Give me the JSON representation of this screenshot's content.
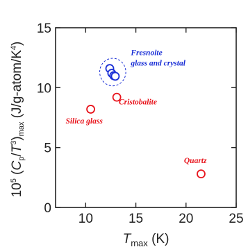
{
  "chart_data": {
    "type": "scatter",
    "x_axis": {
      "label_main": "T",
      "label_sub": "max",
      "label_unit": "(K)",
      "range": [
        7,
        25
      ],
      "ticks": [
        10,
        15,
        20,
        25
      ],
      "tick_labels": [
        "10",
        "15",
        "20",
        "25"
      ]
    },
    "y_axis": {
      "label_prefix": "10",
      "label_exp": "5",
      "label_open": "(",
      "label_c": "C",
      "label_c_sub": "p",
      "label_slash": "/",
      "label_t": "T",
      "label_t_exp": "3",
      "label_close": ")",
      "label_max_sub": "max",
      "label_unit": "(J/g-atom/K",
      "label_unit_exp": "4",
      "label_unit_close": ")",
      "range": [
        0,
        15
      ],
      "ticks": [
        0,
        5,
        10,
        15
      ],
      "tick_labels": [
        "0",
        "5",
        "10",
        "15"
      ]
    },
    "series": [
      {
        "color": "#e8141c",
        "points": [
          {
            "x": 10.5,
            "y": 8.2
          },
          {
            "x": 13.1,
            "y": 9.2
          },
          {
            "x": 21.5,
            "y": 2.8
          }
        ]
      },
      {
        "color": "#1a2fd6",
        "points": [
          {
            "x": 12.4,
            "y": 11.6
          },
          {
            "x": 12.6,
            "y": 11.2
          },
          {
            "x": 12.8,
            "y": 11.0
          },
          {
            "x": 12.95,
            "y": 10.95
          }
        ]
      }
    ],
    "group_ellipse": {
      "cx": 12.7,
      "cy": 11.3,
      "rx": 1.3,
      "ry": 1.15,
      "color": "#1a2fd6"
    },
    "annotations": [
      {
        "id": "silica",
        "lines": [
          "Silica glass"
        ],
        "color": "#e8141c",
        "x": 8.0,
        "y": 7.0
      },
      {
        "id": "cristobalite",
        "lines": [
          "Cristobalite"
        ],
        "color": "#e8141c",
        "x": 13.3,
        "y": 8.6
      },
      {
        "id": "quartz",
        "lines": [
          "Quartz"
        ],
        "color": "#e8141c",
        "x": 19.8,
        "y": 3.7
      },
      {
        "id": "fresnoite",
        "lines": [
          "Fresnoite",
          "glass and crystal"
        ],
        "color": "#1a2fd6",
        "x": 14.5,
        "y": 12.7
      }
    ],
    "grid": false
  }
}
